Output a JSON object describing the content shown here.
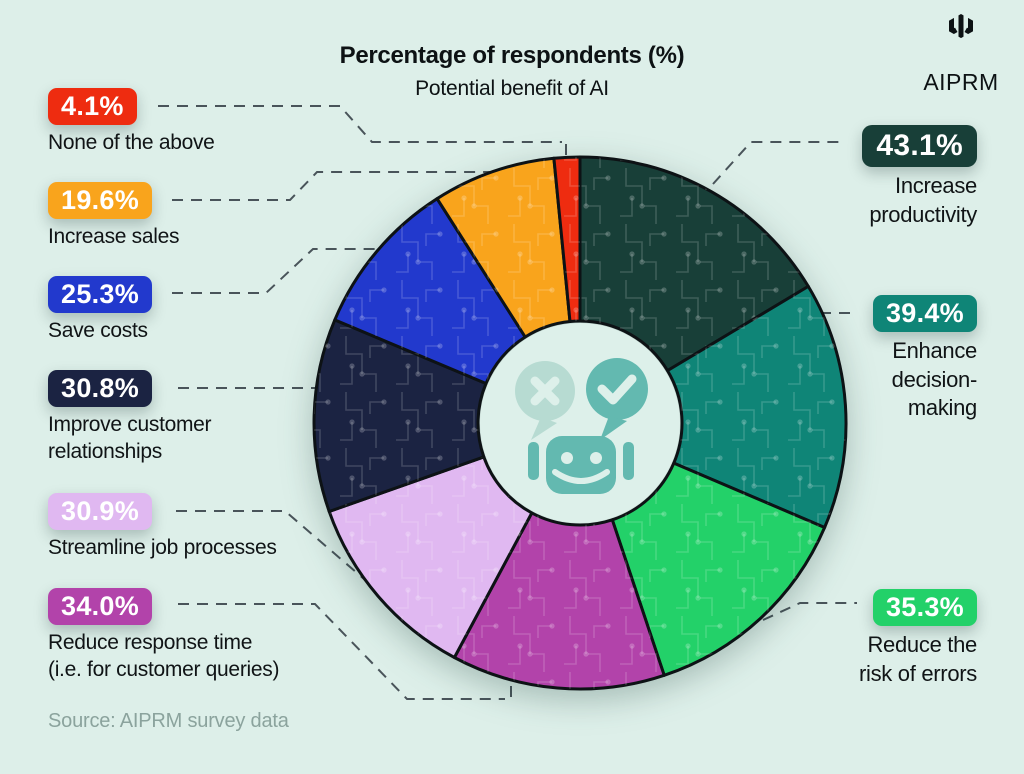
{
  "title": {
    "main": "Percentage of respondents (%)",
    "subtitle": "Potential benefit of AI"
  },
  "logo": {
    "text": "AIPRM"
  },
  "source": "Source: AIPRM survey data",
  "colors": {
    "background": "#ddefe9",
    "ink": "#0d1214",
    "connector": "#49545a",
    "source_text": "#8ba39d",
    "segment_stroke": "#0d1215",
    "center_hole": "#ddf0ea",
    "robot_teal": "#63b9b0",
    "robot_light_teal": "#b7dbd2"
  },
  "chart_data": {
    "type": "pie",
    "title": "Percentage of respondents (%)",
    "subtitle": "Potential benefit of AI",
    "unit": "%",
    "donut": true,
    "start_angle_deg_from_top": 0,
    "clockwise": true,
    "segments": [
      {
        "label": "Increase productivity",
        "value": 43.1,
        "color": "#183f38"
      },
      {
        "label": "Enhance decision-making",
        "value": 39.4,
        "color": "#0f8577"
      },
      {
        "label": "Reduce the risk of errors",
        "value": 35.3,
        "color": "#23d169"
      },
      {
        "label": "Reduce response time (i.e. for customer queries)",
        "value": 34.0,
        "color": "#b243aa"
      },
      {
        "label": "Streamline job processes",
        "value": 30.9,
        "color": "#e0b8f1"
      },
      {
        "label": "Improve customer relationships",
        "value": 30.8,
        "color": "#1b2342"
      },
      {
        "label": "Save costs",
        "value": 25.3,
        "color": "#2239cd"
      },
      {
        "label": "Increase sales",
        "value": 19.6,
        "color": "#f9a41c"
      },
      {
        "label": "None of the above",
        "value": 4.1,
        "color": "#ee2c10"
      }
    ]
  },
  "callouts": {
    "left": [
      {
        "badge": "4.1%",
        "color": "#ee2c10",
        "lines": [
          "None of the above"
        ]
      },
      {
        "badge": "19.6%",
        "color": "#f9a41c",
        "lines": [
          "Increase sales"
        ]
      },
      {
        "badge": "25.3%",
        "color": "#2239cd",
        "lines": [
          "Save costs"
        ]
      },
      {
        "badge": "30.8%",
        "color": "#1b2342",
        "lines": [
          "Improve customer",
          "relationships"
        ]
      },
      {
        "badge": "30.9%",
        "color": "#e0b8f1",
        "lines": [
          "Streamline job processes"
        ]
      },
      {
        "badge": "34.0%",
        "color": "#b243aa",
        "lines": [
          "Reduce response time",
          "(i.e. for customer queries)"
        ]
      }
    ],
    "right": [
      {
        "badge": "43.1%",
        "color": "#183f38",
        "lines": [
          "Increase",
          "productivity"
        ]
      },
      {
        "badge": "39.4%",
        "color": "#0f8577",
        "lines": [
          "Enhance",
          "decision-",
          "making"
        ]
      },
      {
        "badge": "35.3%",
        "color": "#23d169",
        "lines": [
          "Reduce the",
          "risk of errors"
        ]
      }
    ]
  },
  "center_icon": "robot-chat-icon"
}
